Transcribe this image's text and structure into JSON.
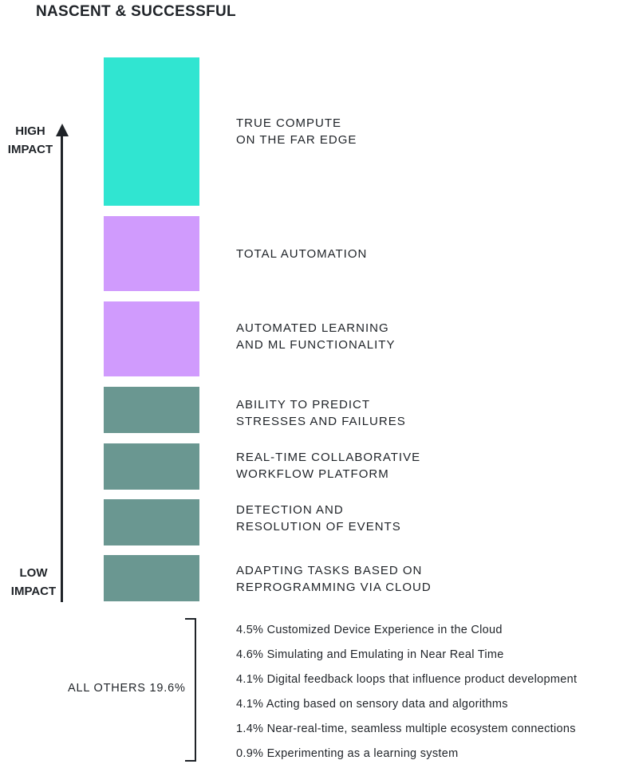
{
  "chart_data": {
    "type": "bar",
    "title": "NASCENT & SUCCESSFUL",
    "axis": {
      "high_label": "HIGH\nIMPACT",
      "low_label": "LOW\nIMPACT"
    },
    "colors": {
      "top": "#30e5d1",
      "middle": "#d09bfd",
      "lower": "#6a9791"
    },
    "bars": [
      {
        "label": "TRUE COMPUTE\nON THE FAR EDGE",
        "tier": "top"
      },
      {
        "label": "TOTAL AUTOMATION",
        "tier": "middle"
      },
      {
        "label": "AUTOMATED LEARNING\nAND ML FUNCTIONALITY",
        "tier": "middle"
      },
      {
        "label": "ABILITY TO PREDICT\nSTRESSES AND FAILURES",
        "tier": "lower"
      },
      {
        "label": "REAL-TIME COLLABORATIVE\nWORKFLOW PLATFORM",
        "tier": "lower"
      },
      {
        "label": "DETECTION AND\nRESOLUTION OF EVENTS",
        "tier": "lower"
      },
      {
        "label": "ADAPTING TASKS BASED ON\nREPROGRAMMING VIA CLOUD",
        "tier": "lower"
      }
    ],
    "others": {
      "label": "ALL OTHERS 19.6%",
      "items": [
        "4.5% Customized Device Experience in the Cloud",
        "4.6% Simulating and Emulating in Near Real Time",
        "4.1% Digital feedback loops that influence product development",
        "4.1% Acting based on sensory data and algorithms",
        "1.4% Near-real-time, seamless multiple ecosystem connections",
        "0.9% Experimenting as a learning system"
      ]
    }
  }
}
